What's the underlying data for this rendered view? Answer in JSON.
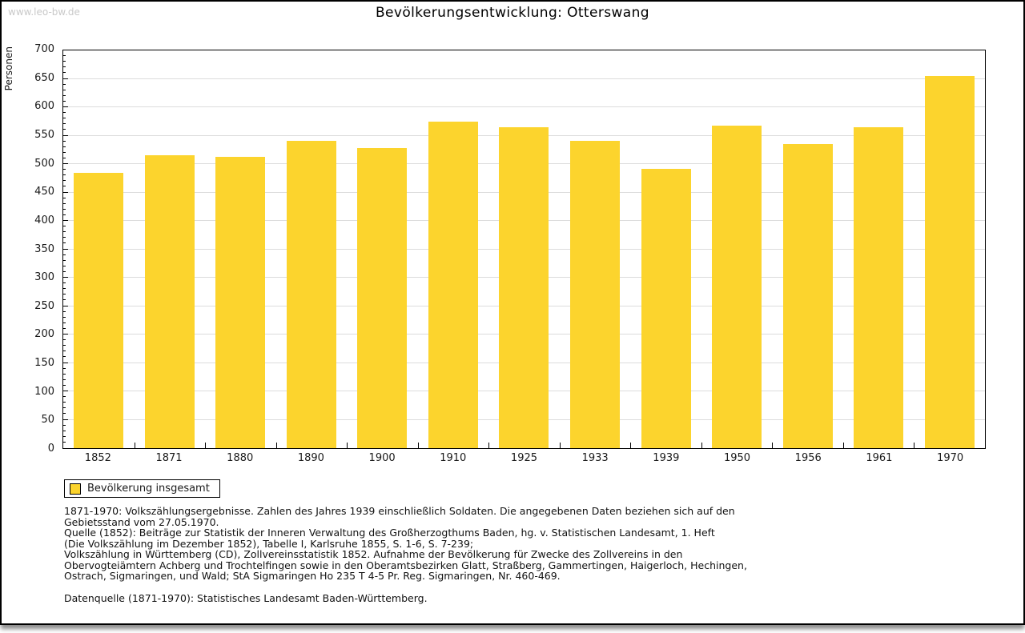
{
  "watermark": "www.leo-bw.de",
  "title": "Bevölkerungsentwicklung: Otterswang",
  "chart_data": {
    "type": "bar",
    "title": "Bevölkerungsentwicklung: Otterswang",
    "xlabel": "",
    "ylabel": "Personen",
    "categories": [
      "1852",
      "1871",
      "1880",
      "1890",
      "1900",
      "1910",
      "1925",
      "1933",
      "1939",
      "1950",
      "1956",
      "1961",
      "1970"
    ],
    "values": [
      485,
      516,
      512,
      541,
      528,
      575,
      565,
      541,
      491,
      568,
      535,
      565,
      655
    ],
    "ylim": [
      0,
      700
    ],
    "ytick_step": 50,
    "ytick_minor_step": 10,
    "grid": true,
    "legend_position": "bottom-left",
    "series_name": "Bevölkerung insgesamt",
    "bar_color": "#FCD42D"
  },
  "legend": {
    "label": "Bevölkerung insgesamt",
    "swatch_color": "#FCD42D"
  },
  "footer": {
    "lines": [
      "1871-1970: Volkszählungsergebnisse. Zahlen des Jahres 1939 einschließlich Soldaten. Die angegebenen Daten beziehen sich auf den",
      "Gebietsstand vom 27.05.1970.",
      "Quelle (1852): Beiträge zur Statistik der Inneren Verwaltung des Großherzogthums Baden, hg. v. Statistischen Landesamt, 1. Heft",
      "(Die Volkszählung im Dezember 1852), Tabelle I, Karlsruhe 1855, S. 1-6, S. 7-239;",
      "Volkszählung in Württemberg (CD), Zollvereinsstatistik 1852. Aufnahme der Bevölkerung für Zwecke des Zollvereins in den",
      "Obervogteiämtern Achberg und Trochtelfingen sowie in den Oberamtsbezirken Glatt, Straßberg, Gammertingen, Haigerloch, Hechingen,",
      "Ostrach, Sigmaringen, und Wald; StA Sigmaringen Ho 235 T 4-5 Pr. Reg. Sigmaringen, Nr. 460-469."
    ],
    "datasource": "Datenquelle (1871-1970): Statistisches Landesamt Baden-Württemberg."
  },
  "colors": {
    "bar": "#FCD42D",
    "gridline": "#DCDCDC",
    "watermark": "#C9C9C9",
    "text": "#1A1A1A"
  }
}
